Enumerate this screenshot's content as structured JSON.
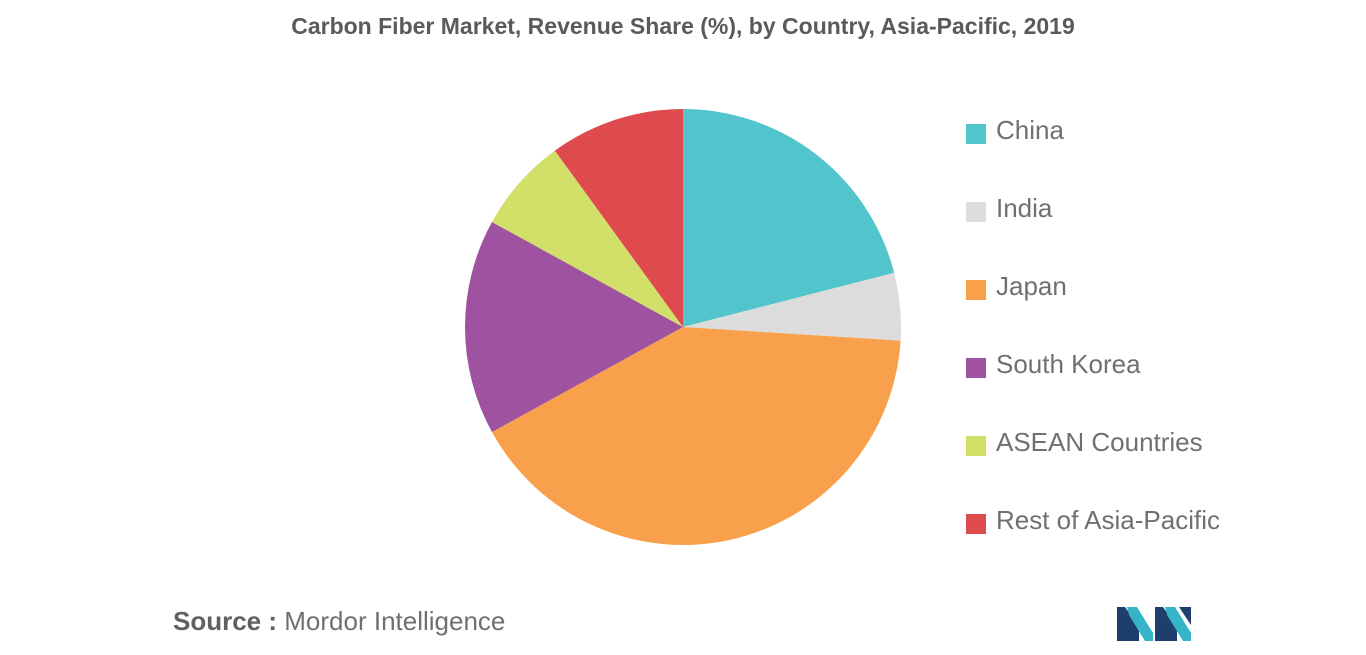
{
  "chart_data": {
    "type": "pie",
    "title": "Carbon Fiber Market, Revenue Share (%), by Country, Asia-Pacific, 2019",
    "categories": [
      "China",
      "India",
      "Japan",
      "South Korea",
      "ASEAN Countries",
      "Rest of Asia-Pacific"
    ],
    "values": [
      21,
      5,
      41,
      16,
      7,
      10
    ],
    "colors": [
      "#52C4CC",
      "#DCDCDC",
      "#F8A04B",
      "#9E52A0",
      "#D2E06A",
      "#DE4A4D"
    ],
    "start_angle_deg": 0,
    "direction": "clockwise",
    "legend_position": "right"
  },
  "source": {
    "label": "Source :",
    "text": "Mordor Intelligence"
  },
  "logo": {
    "icon": "mordor-intelligence-logo",
    "colors": [
      "#1E3E6E",
      "#36B5C9"
    ]
  }
}
